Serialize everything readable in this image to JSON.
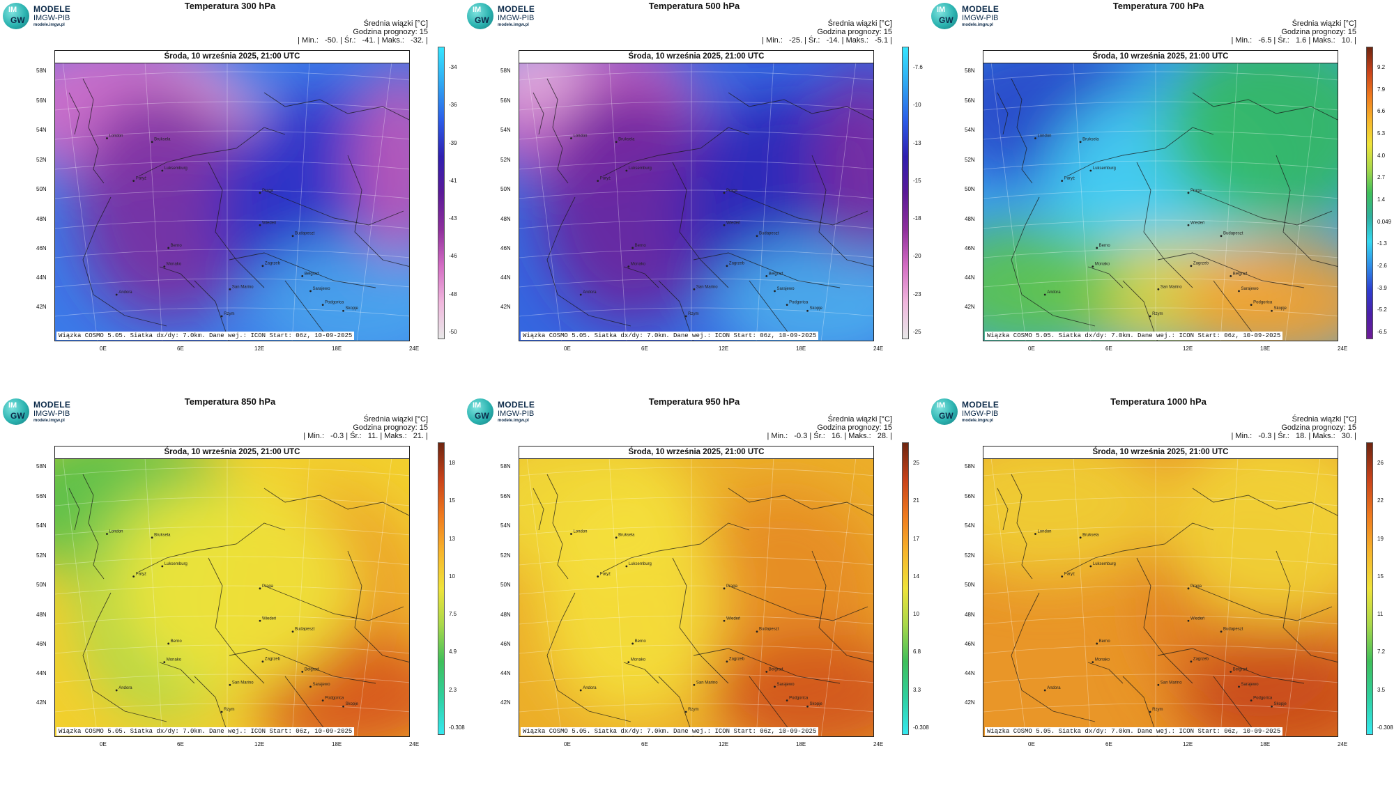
{
  "header": {
    "logo_im": "IM",
    "logo_gw": "GW",
    "logo_line1": "MODELE",
    "logo_line2": "IMGW-PIB",
    "logo_line3": "modele.imgw.pl"
  },
  "common": {
    "date": "Środa, 10 września 2025, 21:00 UTC",
    "mean_label": "Średnia wiązki [°C]",
    "forecast_hour": "Godzina prognozy: 15",
    "footer": "Wiązka COSMO 5.05. Siatka dx/dy: 7.0km. Dane wej.: ICON Start: 06z, 10-09-2025",
    "lat_labels": [
      "58N",
      "56N",
      "54N",
      "52N",
      "50N",
      "48N",
      "46N",
      "44N",
      "42N"
    ],
    "lon_labels": [
      "0E",
      "6E",
      "12E",
      "18E",
      "24E"
    ],
    "cities": [
      "London",
      "Bruksela",
      "Paryż",
      "Luksemburg",
      "Praga",
      "Wiedeń",
      "Budapeszt",
      "Berno",
      "Monako",
      "Zagrzeb",
      "Belgrad",
      "San Marino",
      "Sarajewo",
      "Andora",
      "Rzym",
      "Skopje",
      "Podgorica"
    ]
  },
  "panels": [
    {
      "title": "Temperatura 300 hPa",
      "stats": "| Min.:   -50. | Śr.:   -41. | Maks.:   -32. |",
      "colorbar_ticks": [
        "-34",
        "-36",
        "-39",
        "-41",
        "-43",
        "-46",
        "-48",
        "-50"
      ],
      "colorbar_colors": [
        "#35e6ff",
        "#2fa7f2",
        "#2b5de8",
        "#2f1fb0",
        "#5a1a98",
        "#8e2f9c",
        "#d36cc3",
        "#f0b6dd",
        "#e8e8e8"
      ],
      "map_base": "#3b7ae8",
      "blobs": [
        {
          "color": "#d86fc8",
          "area": "top-left"
        },
        {
          "color": "#f0a6dd",
          "area": "top-center"
        },
        {
          "color": "#7a2ba0",
          "area": "center-left"
        },
        {
          "color": "#2b2fc4",
          "area": "center-right"
        },
        {
          "color": "#4aa8ef",
          "area": "bottom-right"
        },
        {
          "color": "#c25ab8",
          "area": "right-edge"
        }
      ]
    },
    {
      "title": "Temperatura 500 hPa",
      "stats": "| Min.:   -25. | Śr.:   -14. | Maks.:   -5.1 |",
      "colorbar_ticks": [
        "-7.6",
        "-10",
        "-13",
        "-15",
        "-18",
        "-20",
        "-23",
        "-25"
      ],
      "colorbar_colors": [
        "#35e6ff",
        "#2fa7f2",
        "#2b5de8",
        "#2f1fb0",
        "#5a1a98",
        "#8e2f9c",
        "#d36cc3",
        "#f0b6dd",
        "#e8e8e8"
      ],
      "map_base": "#3567e0",
      "blobs": [
        {
          "color": "#cf62c0",
          "area": "top-left"
        },
        {
          "color": "#e7b5e0",
          "area": "top-left-corner"
        },
        {
          "color": "#6b249c",
          "area": "center-left"
        },
        {
          "color": "#2b25b6",
          "area": "center-right"
        },
        {
          "color": "#4db3f0",
          "area": "bottom-right"
        },
        {
          "color": "#7d2aa0",
          "area": "right-edge"
        }
      ]
    },
    {
      "title": "Temperatura 700 hPa",
      "stats": "| Min.:   -6.5 | Śr.:   1.6 | Maks.:   10. |",
      "colorbar_ticks": [
        "9.2",
        "7.9",
        "6.6",
        "5.3",
        "4.0",
        "2.7",
        "1.4",
        "0.049",
        "-1.3",
        "-2.6",
        "-3.9",
        "-5.2",
        "-6.5"
      ],
      "colorbar_colors": [
        "#6e2510",
        "#c8421a",
        "#ef7a1e",
        "#f7b52b",
        "#efe33a",
        "#a9d84a",
        "#3fbf5a",
        "#2fb0a0",
        "#35d8f0",
        "#2f8ee8",
        "#2d3ed0",
        "#4a1fa8",
        "#6e1c96"
      ],
      "map_base": "#3aa0ee",
      "blobs": [
        {
          "color": "#2a46c8",
          "area": "top-left"
        },
        {
          "color": "#45d2f2",
          "area": "center"
        },
        {
          "color": "#34b85e",
          "area": "top-right"
        },
        {
          "color": "#e4d43a",
          "area": "bottom-center"
        },
        {
          "color": "#f2a030",
          "area": "bottom-right"
        },
        {
          "color": "#5dc34a",
          "area": "bottom-left"
        }
      ]
    },
    {
      "title": "Temperatura 850 hPa",
      "stats": "| Min.:   -0.3 | Śr.:   11. | Maks.:   21. |",
      "colorbar_ticks": [
        "18",
        "15",
        "13",
        "10",
        "7.5",
        "4.9",
        "2.3",
        "-0.308"
      ],
      "colorbar_colors": [
        "#6e2510",
        "#c8421a",
        "#ef7a1e",
        "#f7b52b",
        "#efe33a",
        "#a9d84a",
        "#3fbf5a",
        "#2fd0a0",
        "#35e8f0"
      ],
      "map_base": "#f2cf2e",
      "blobs": [
        {
          "color": "#4cbf4e",
          "area": "top-left"
        },
        {
          "color": "#a6d84a",
          "area": "center-left"
        },
        {
          "color": "#eb9a28",
          "area": "center-right"
        },
        {
          "color": "#d6531c",
          "area": "bottom-right"
        },
        {
          "color": "#f0e43a",
          "area": "center"
        }
      ]
    },
    {
      "title": "Temperatura 950 hPa",
      "stats": "| Min.:   -0.3 | Śr.:   16. | Maks.:   28. |",
      "colorbar_ticks": [
        "25",
        "21",
        "17",
        "14",
        "10",
        "6.8",
        "3.3",
        "-0.308"
      ],
      "colorbar_colors": [
        "#6e2510",
        "#c8421a",
        "#ef7a1e",
        "#f7b52b",
        "#efe33a",
        "#a9d84a",
        "#3fbf5a",
        "#2fd0a0",
        "#35e8f0"
      ],
      "map_base": "#ecae2a",
      "blobs": [
        {
          "color": "#f1d936",
          "area": "top-left"
        },
        {
          "color": "#e58b24",
          "area": "center-right"
        },
        {
          "color": "#d0531c",
          "area": "bottom-right"
        },
        {
          "color": "#f4e03c",
          "area": "center-left"
        }
      ]
    },
    {
      "title": "Temperatura 1000 hPa",
      "stats": "| Min.:   -0.3 | Śr.:   18. | Maks.:   30. |",
      "colorbar_ticks": [
        "26",
        "22",
        "19",
        "15",
        "11",
        "7.2",
        "3.5",
        "-0.308"
      ],
      "colorbar_colors": [
        "#6e2510",
        "#c8421a",
        "#ef7a1e",
        "#f7b52b",
        "#efe33a",
        "#a9d84a",
        "#3fbf5a",
        "#2fd0a0",
        "#35e8f0"
      ],
      "map_base": "#e99628",
      "blobs": [
        {
          "color": "#f0cf34",
          "area": "top-left"
        },
        {
          "color": "#e07c22",
          "area": "center-right"
        },
        {
          "color": "#c8481a",
          "area": "bottom-right"
        },
        {
          "color": "#f2d638",
          "area": "top-right"
        }
      ]
    }
  ]
}
